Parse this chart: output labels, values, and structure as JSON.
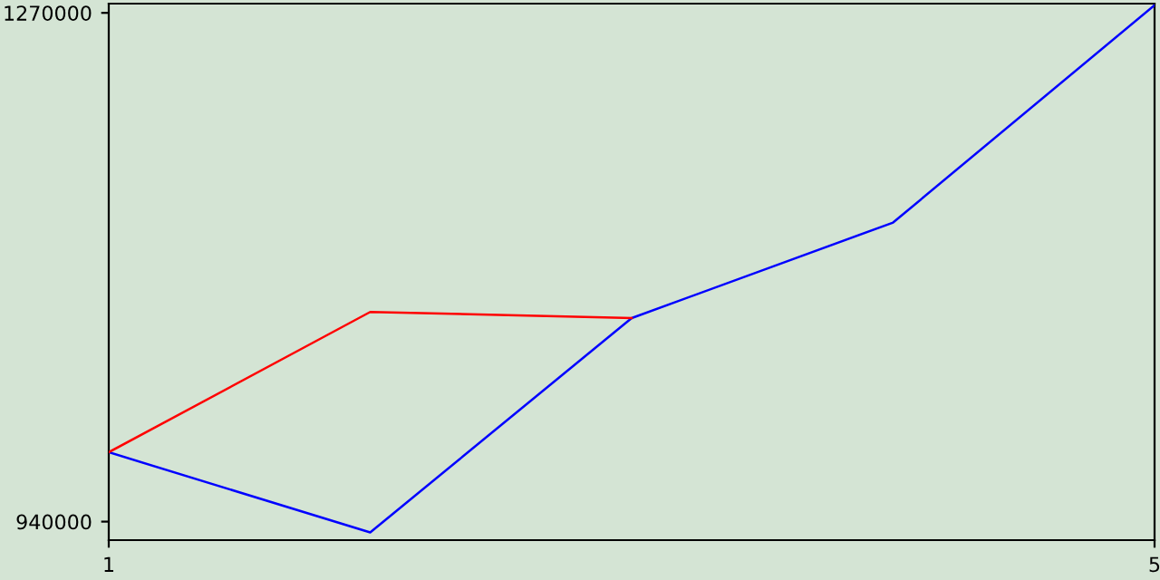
{
  "chart_data": {
    "type": "line",
    "x": [
      1,
      2,
      3,
      4,
      5
    ],
    "series": [
      {
        "color": "#0000ff",
        "values": [
          985000,
          933000,
          1072000,
          1134000,
          1275000
        ]
      },
      {
        "color": "#ff0000",
        "values": [
          985000,
          1076000,
          1072000,
          null,
          null
        ]
      }
    ],
    "xlim": [
      1,
      5
    ],
    "xticks": [
      1,
      5
    ],
    "ylim": [
      928000,
      1276000
    ],
    "yticks": [
      940000,
      1270000
    ],
    "line_style": "solid",
    "grid": false,
    "legend": false
  }
}
